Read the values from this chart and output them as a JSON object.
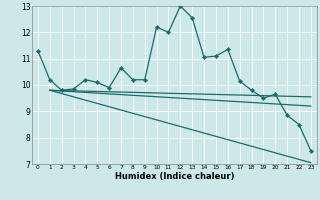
{
  "xlabel": "Humidex (Indice chaleur)",
  "bg_color": "#cce8e8",
  "grid_color": "#ffffff",
  "line_color": "#1a6b6b",
  "xlim": [
    -0.5,
    23.5
  ],
  "ylim": [
    7,
    13
  ],
  "yticks": [
    7,
    8,
    9,
    10,
    11,
    12,
    13
  ],
  "xticks": [
    0,
    1,
    2,
    3,
    4,
    5,
    6,
    7,
    8,
    9,
    10,
    11,
    12,
    13,
    14,
    15,
    16,
    17,
    18,
    19,
    20,
    21,
    22,
    23
  ],
  "series1_x": [
    0,
    1,
    2,
    3,
    4,
    5,
    6,
    7,
    8,
    9,
    10,
    11,
    12,
    13,
    14,
    15,
    16,
    17,
    18,
    19,
    20,
    21,
    22,
    23
  ],
  "series1_y": [
    11.3,
    10.2,
    9.8,
    9.85,
    10.2,
    10.1,
    9.9,
    10.65,
    10.2,
    10.2,
    12.2,
    12.0,
    13.0,
    12.55,
    11.05,
    11.1,
    11.35,
    10.15,
    9.8,
    9.5,
    9.65,
    8.85,
    8.5,
    7.5
  ],
  "trend1_x": [
    1,
    23
  ],
  "trend1_y": [
    9.8,
    9.55
  ],
  "trend2_x": [
    1,
    23
  ],
  "trend2_y": [
    9.8,
    9.2
  ],
  "trend3_x": [
    1,
    23
  ],
  "trend3_y": [
    9.8,
    7.05
  ]
}
